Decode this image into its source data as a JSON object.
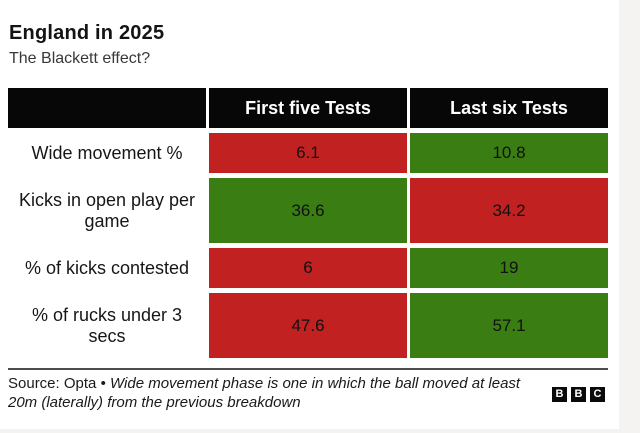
{
  "header": {
    "title": "England in 2025",
    "subtitle": "The Blackett effect?"
  },
  "table": {
    "columns": [
      "First five Tests",
      "Last six Tests"
    ],
    "rows": [
      {
        "label": "Wide movement %",
        "cells": [
          {
            "value": "6.1",
            "tone": "negative"
          },
          {
            "value": "10.8",
            "tone": "positive"
          }
        ]
      },
      {
        "label": "Kicks in open play per game",
        "cells": [
          {
            "value": "36.6",
            "tone": "positive"
          },
          {
            "value": "34.2",
            "tone": "negative"
          }
        ]
      },
      {
        "label": "% of kicks contested",
        "cells": [
          {
            "value": "6",
            "tone": "negative"
          },
          {
            "value": "19",
            "tone": "positive"
          }
        ]
      },
      {
        "label": "% of rucks under 3 secs",
        "cells": [
          {
            "value": "47.6",
            "tone": "negative"
          },
          {
            "value": "57.1",
            "tone": "positive"
          }
        ]
      }
    ]
  },
  "footer": {
    "source_prefix": "Source: Opta",
    "bullet": "•",
    "note": "Wide movement phase is one in which the ball moved at least 20m (laterally) from the previous breakdown",
    "logo_letters": {
      "b1": "B",
      "b2": "B",
      "b3": "C"
    }
  },
  "colors": {
    "positive": "#3a7d12",
    "negative": "#c12120",
    "header_bg": "#070707",
    "page_background": "#f4f3f1"
  },
  "chart_data": {
    "type": "table",
    "title": "England in 2025",
    "subtitle": "The Blackett effect?",
    "columns": [
      "First five Tests",
      "Last six Tests"
    ],
    "rows": [
      {
        "metric": "Wide movement %",
        "values": [
          6.1,
          10.8
        ],
        "cell_colors": [
          "red",
          "green"
        ]
      },
      {
        "metric": "Kicks in open play per game",
        "values": [
          36.6,
          34.2
        ],
        "cell_colors": [
          "green",
          "red"
        ]
      },
      {
        "metric": "% of kicks contested",
        "values": [
          6,
          19
        ],
        "cell_colors": [
          "red",
          "green"
        ]
      },
      {
        "metric": "% of rucks under 3 secs",
        "values": [
          47.6,
          57.1
        ],
        "cell_colors": [
          "red",
          "green"
        ]
      }
    ],
    "legend": "green = better value, red = worse value",
    "source": "Source: Opta • Wide movement phase is one in which the ball moved at least 20m (laterally) from the previous breakdown"
  }
}
